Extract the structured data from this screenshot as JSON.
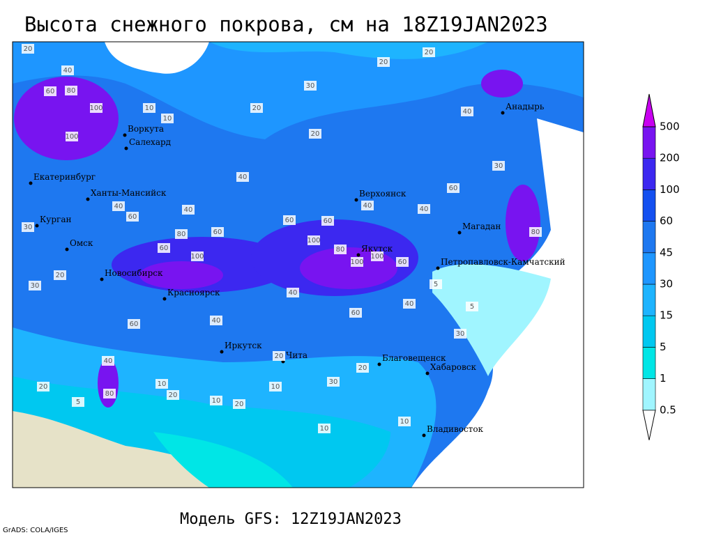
{
  "title": "Высота снежного покрова, см на 18Z19JAN2023",
  "footer": "Модель GFS: 12Z19JAN2023",
  "credit": "GrADS: COLA/IGES",
  "legend": {
    "levels": [
      0.5,
      1,
      5,
      15,
      30,
      45,
      60,
      100,
      200,
      500
    ],
    "colors": [
      "#ffffff",
      "#a0f5ff",
      "#00e6e6",
      "#00c8f0",
      "#1eb4ff",
      "#1e96ff",
      "#1e78f0",
      "#1450f0",
      "#3c28f0",
      "#7814f0",
      "#c800f0"
    ]
  },
  "map": {
    "cities": [
      "Анадырь",
      "Воркута",
      "Салехард",
      "Екатеринбург",
      "Ханты-Мансийск",
      "Верхоянск",
      "Курган",
      "Магадан",
      "Омск",
      "Якутск",
      "Петропавловск-Камчатский",
      "Новосибирск",
      "Красноярск",
      "Иркутск",
      "Чита",
      "Благовещенск",
      "Хабаровск",
      "Владивосток"
    ],
    "contour_labels": [
      20,
      20,
      20,
      30,
      40,
      60,
      80,
      100,
      100,
      10,
      10,
      20,
      20,
      40,
      40,
      40,
      60,
      40,
      30,
      80,
      40,
      60,
      40,
      80,
      60,
      60,
      100,
      60,
      80,
      100,
      100,
      60,
      100,
      60,
      30,
      30,
      20,
      60,
      40,
      40,
      60,
      40,
      80,
      20,
      30,
      20,
      10,
      10,
      20,
      5,
      20,
      10,
      10,
      10,
      5,
      5,
      40,
      30,
      20
    ]
  }
}
